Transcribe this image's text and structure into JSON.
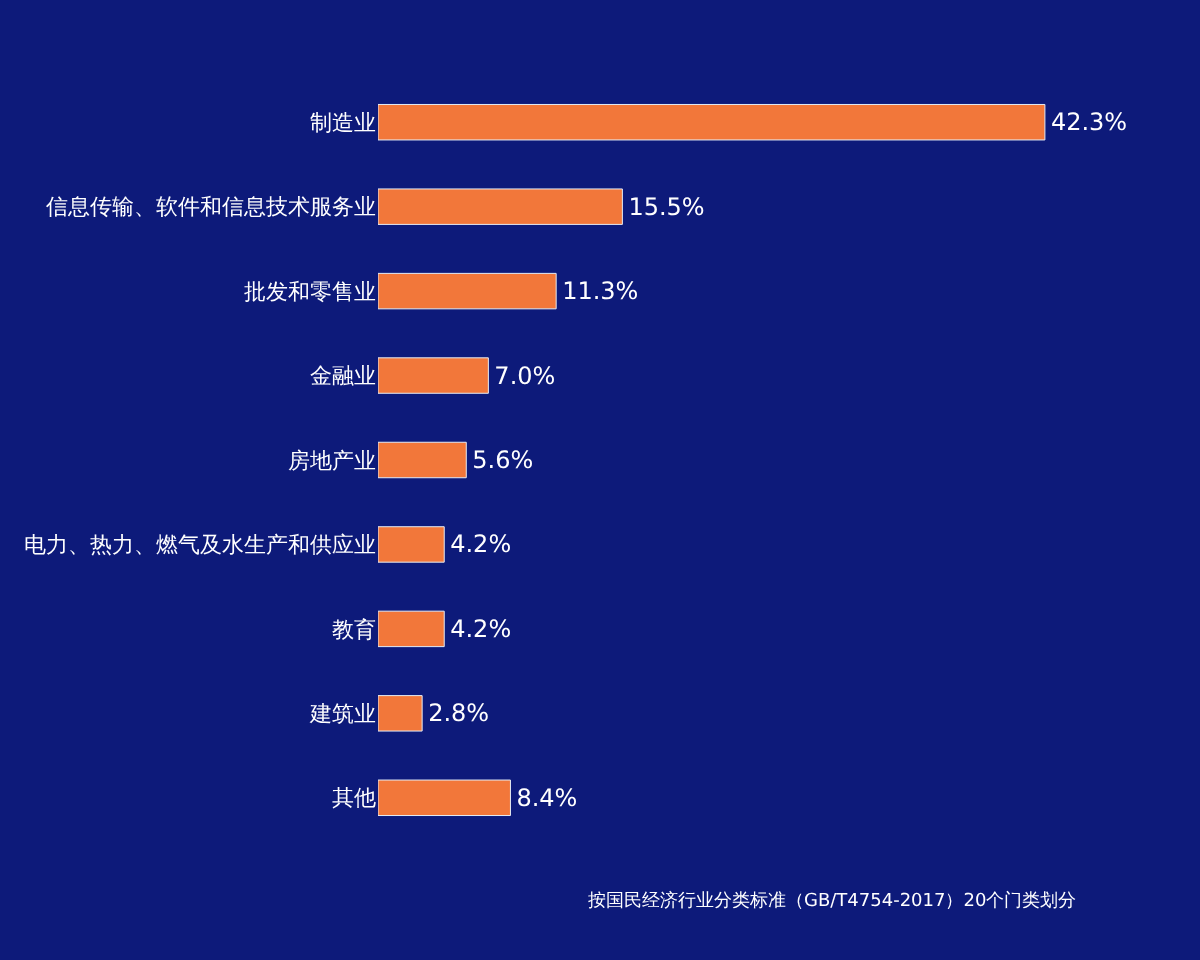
{
  "chart_data": {
    "type": "bar",
    "orientation": "horizontal",
    "categories": [
      "制造业",
      "信息传输、软件和信息技术服务业",
      "批发和零售业",
      "金融业",
      "房地产业",
      "电力、热力、燃气及水生产和供应业",
      "教育",
      "建筑业",
      "其他"
    ],
    "values": [
      42.3,
      15.5,
      11.3,
      7.0,
      5.6,
      4.2,
      4.2,
      2.8,
      8.4
    ],
    "value_labels": [
      "42.3%",
      "15.5%",
      "11.3%",
      "7.0%",
      "5.6%",
      "4.2%",
      "4.2%",
      "2.8%",
      "8.4%"
    ],
    "color": "#f2773a",
    "annotations": [
      "按国民经济行业分类标准（GB/T4754-2017）20个门类划分"
    ]
  }
}
